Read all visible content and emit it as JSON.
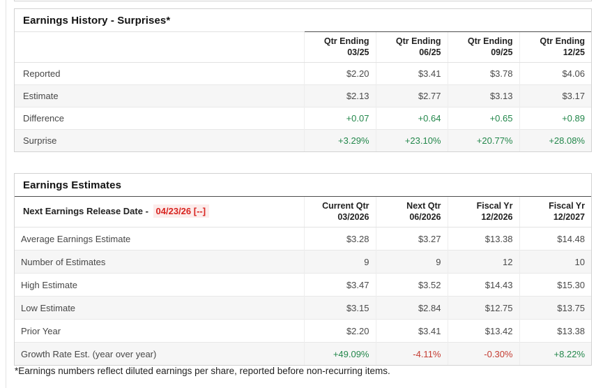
{
  "colors": {
    "green": "#23874b",
    "red": "#c43b31",
    "date_red": "#d8231f",
    "date_bg": "#fceceb"
  },
  "history_table": {
    "title": "Earnings History - Surprises*",
    "columns": [
      {
        "line1": "Qtr Ending",
        "line2": "03/25"
      },
      {
        "line1": "Qtr Ending",
        "line2": "06/25"
      },
      {
        "line1": "Qtr Ending",
        "line2": "09/25"
      },
      {
        "line1": "Qtr Ending",
        "line2": "12/25"
      }
    ],
    "rows": [
      {
        "label": "Reported",
        "values": [
          "$2.20",
          "$3.41",
          "$3.78",
          "$4.06"
        ],
        "signed": false
      },
      {
        "label": "Estimate",
        "values": [
          "$2.13",
          "$2.77",
          "$3.13",
          "$3.17"
        ],
        "signed": false
      },
      {
        "label": "Difference",
        "values": [
          "+0.07",
          "+0.64",
          "+0.65",
          "+0.89"
        ],
        "signed": true
      },
      {
        "label": "Surprise",
        "values": [
          "+3.29%",
          "+23.10%",
          "+20.77%",
          "+28.08%"
        ],
        "signed": true
      }
    ]
  },
  "estimates_table": {
    "title": "Earnings Estimates",
    "release_label": "Next Earnings Release Date - ",
    "release_date": "04/23/26 [--]",
    "columns": [
      {
        "line1": "Current Qtr",
        "line2": "03/2026"
      },
      {
        "line1": "Next Qtr",
        "line2": "06/2026"
      },
      {
        "line1": "Fiscal Yr",
        "line2": "12/2026"
      },
      {
        "line1": "Fiscal Yr",
        "line2": "12/2027"
      }
    ],
    "rows": [
      {
        "label": "Average Earnings Estimate",
        "values": [
          "$3.28",
          "$3.27",
          "$13.38",
          "$14.48"
        ],
        "signed": false
      },
      {
        "label": "Number of Estimates",
        "values": [
          "9",
          "9",
          "12",
          "10"
        ],
        "signed": false
      },
      {
        "label": "High Estimate",
        "values": [
          "$3.47",
          "$3.52",
          "$14.43",
          "$15.30"
        ],
        "signed": false
      },
      {
        "label": "Low Estimate",
        "values": [
          "$3.15",
          "$2.84",
          "$12.75",
          "$13.75"
        ],
        "signed": false
      },
      {
        "label": "Prior Year",
        "values": [
          "$2.20",
          "$3.41",
          "$13.42",
          "$13.38"
        ],
        "signed": false
      },
      {
        "label": "Growth Rate Est. (year over year)",
        "values": [
          "+49.09%",
          "-4.11%",
          "-0.30%",
          "+8.22%"
        ],
        "signed": true
      }
    ]
  },
  "page": {
    "footnote": "*Earnings numbers reflect diluted earnings per share, reported before non-recurring items."
  }
}
